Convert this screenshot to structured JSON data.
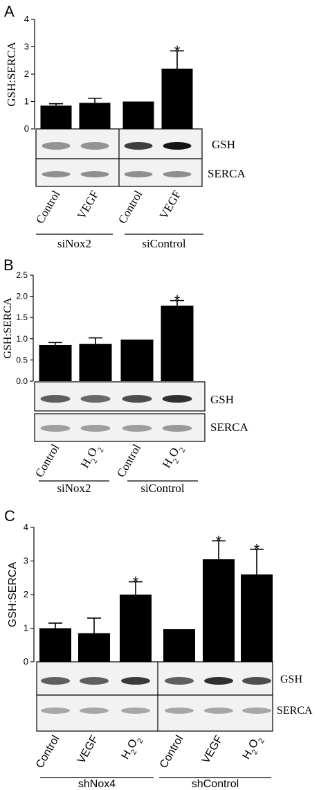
{
  "chart_data": [
    {
      "type": "bar",
      "panel_label": "A",
      "categories": [
        "Control",
        "VEGF",
        "Control",
        "VEGF"
      ],
      "values": [
        0.85,
        0.95,
        1.0,
        2.2
      ],
      "errors": [
        0.07,
        0.17,
        0.0,
        0.65
      ],
      "significant": [
        false,
        false,
        false,
        true
      ],
      "marker": "*",
      "ylabel": "GSH:SERCA",
      "ylim": [
        0,
        4
      ],
      "yticks": [
        "0",
        "1",
        "2",
        "3",
        "4"
      ],
      "groups": [
        {
          "label": "siNox2",
          "categories": [
            0,
            1
          ]
        },
        {
          "label": "siControl",
          "categories": [
            2,
            3
          ]
        }
      ],
      "blots": [
        "GSH",
        "SERCA"
      ],
      "grid": false
    },
    {
      "type": "bar",
      "panel_label": "B",
      "categories": [
        "Control",
        "H",
        "Control",
        "H"
      ],
      "category_subscript": [
        "",
        "2",
        "",
        "2"
      ],
      "category_suffix": [
        "",
        "O",
        "",
        "O"
      ],
      "category_suffix_subscript": [
        "",
        "2",
        "",
        "2"
      ],
      "values": [
        0.85,
        0.88,
        0.98,
        1.78
      ],
      "errors": [
        0.06,
        0.14,
        0.0,
        0.12
      ],
      "significant": [
        false,
        false,
        false,
        true
      ],
      "marker": "*",
      "ylabel": "GSH:SERCA",
      "ylim": [
        0,
        2.5
      ],
      "yticks": [
        "0.0",
        "0.5",
        "1.0",
        "1.5",
        "2.0",
        "2.5"
      ],
      "groups": [
        {
          "label": "siNox2",
          "categories": [
            0,
            1
          ]
        },
        {
          "label": "siControl",
          "categories": [
            2,
            3
          ]
        }
      ],
      "blots": [
        "GSH",
        "SERCA"
      ],
      "grid": false
    },
    {
      "type": "bar",
      "panel_label": "C",
      "categories": [
        "Control",
        "VEGF",
        "H",
        "Control",
        "VEGF",
        "H"
      ],
      "category_subscript": [
        "",
        "",
        "2",
        "",
        "",
        "2"
      ],
      "category_suffix": [
        "",
        "",
        "O",
        "",
        "",
        "O"
      ],
      "category_suffix_subscript": [
        "",
        "",
        "2",
        "",
        "",
        "2"
      ],
      "values": [
        1.0,
        0.85,
        2.0,
        0.97,
        3.05,
        2.6
      ],
      "errors": [
        0.15,
        0.45,
        0.38,
        0.0,
        0.55,
        0.75
      ],
      "significant": [
        false,
        false,
        true,
        false,
        true,
        true
      ],
      "marker": "*",
      "ylabel": "GSH:SERCA",
      "ylim": [
        0,
        4
      ],
      "yticks": [
        "0",
        "1",
        "2",
        "3",
        "4"
      ],
      "groups": [
        {
          "label": "shNox4",
          "categories": [
            0,
            1,
            2
          ]
        },
        {
          "label": "shControl",
          "categories": [
            3,
            4,
            5
          ]
        }
      ],
      "blots": [
        "GSH",
        "SERCA"
      ],
      "grid": false
    }
  ]
}
